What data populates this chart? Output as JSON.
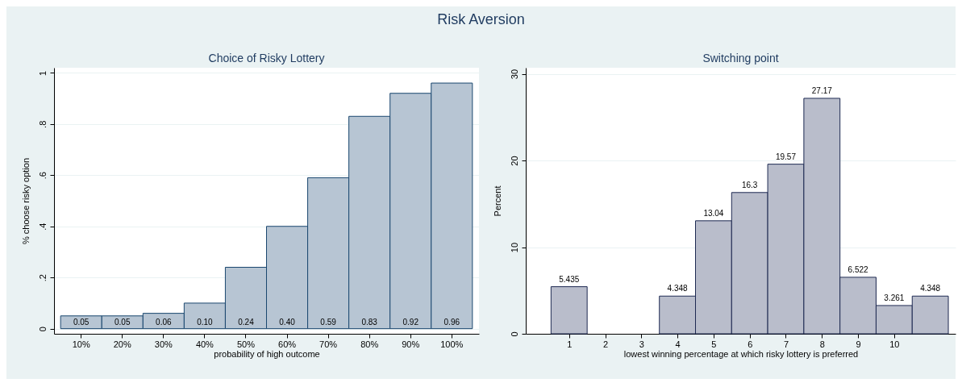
{
  "chart_data": [
    {
      "type": "bar",
      "title": "Choice of Risky Lottery",
      "annotations": [
        "Risk Aversion"
      ],
      "xlabel": "probability of high outcome",
      "ylabel": "% choose risky option",
      "categories": [
        "10%",
        "20%",
        "30%",
        "40%",
        "50%",
        "60%",
        "70%",
        "80%",
        "90%",
        "100%"
      ],
      "values": [
        0.05,
        0.05,
        0.06,
        0.1,
        0.24,
        0.4,
        0.59,
        0.83,
        0.92,
        0.96
      ],
      "value_labels": [
        "0.05",
        "0.05",
        "0.06",
        "0.10",
        "0.24",
        "0.40",
        "0.59",
        "0.83",
        "0.92",
        "0.96"
      ],
      "color": "#b7c5d3",
      "ylim": [
        -0.02,
        1.02
      ],
      "yticks": [
        0,
        {
          "value": 0.2,
          "label": ".2"
        },
        {
          "value": 0.4,
          "label": ".4"
        },
        {
          "value": 0.6,
          "label": ".6"
        },
        {
          "value": 0.8,
          "label": ".8"
        },
        1
      ],
      "grid": "y"
    },
    {
      "type": "histogram",
      "title": "Switching point",
      "xlabel": "lowest winning percentage at which risky lottery is preferred",
      "ylabel": "Percent",
      "bins": [
        0.5,
        1.5,
        2.5,
        3.5,
        4.5,
        5.5,
        6.5,
        7.5,
        8.5,
        9.5,
        10.5,
        11.5
      ],
      "values": [
        5.435,
        0,
        0,
        4.348,
        13.04,
        16.3,
        19.57,
        27.17,
        6.522,
        3.261,
        4.348
      ],
      "value_labels": [
        "5.435",
        null,
        null,
        "4.348",
        "13.04",
        "16.3",
        "19.57",
        "27.17",
        "6.522",
        "3.261",
        "4.348"
      ],
      "color": "#b9bdcb",
      "xlim": [
        -0.2,
        11.7
      ],
      "xticks": [
        1,
        2,
        3,
        4,
        5,
        6,
        7,
        8,
        9,
        10
      ],
      "ylim": [
        0,
        30.7
      ],
      "yticks": [
        0,
        10,
        20,
        30
      ],
      "grid": "y"
    }
  ]
}
